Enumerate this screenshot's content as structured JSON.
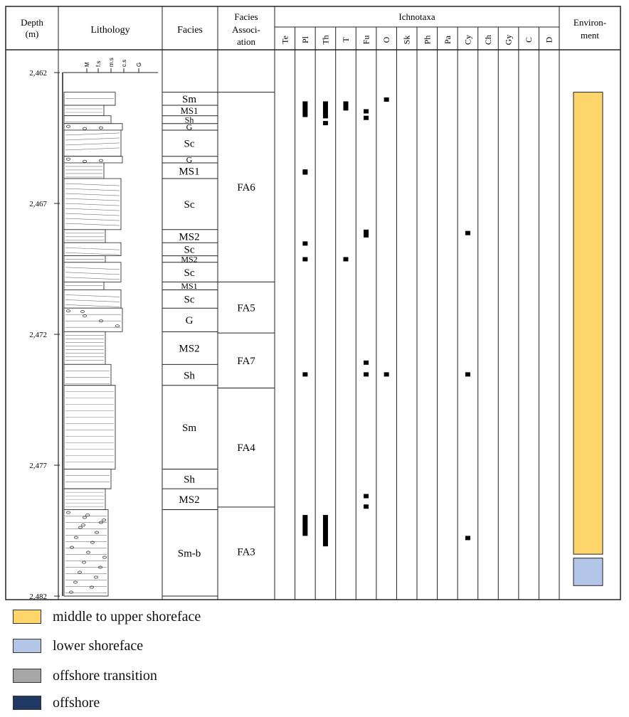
{
  "header": {
    "depth": [
      "Depth",
      "(m)"
    ],
    "lithology": "Lithology",
    "facies": "Facies",
    "association": [
      "Facies",
      "Associ-",
      "ation"
    ],
    "ichnotaxa": "Ichnotaxa",
    "environment": [
      "Environ-",
      "ment"
    ]
  },
  "grain_scale": [
    "M",
    "f.s",
    "m.s",
    "c.s",
    "G"
  ],
  "depth_scale": {
    "top": 2462,
    "bottom": 2482,
    "ticks": [
      "2,462",
      "2,467",
      "2,472",
      "2,477",
      "2,482"
    ]
  },
  "ichnotaxa": [
    "Te",
    "Pl",
    "Th",
    "T",
    "Fu",
    "O",
    "Sk",
    "Ph",
    "Pa",
    "Cy",
    "Ch",
    "Gy",
    "C",
    "D"
  ],
  "facies": [
    {
      "label": "Sm",
      "top": 2462.75,
      "bottom": 2463.25
    },
    {
      "label": "MS1",
      "top": 2463.25,
      "bottom": 2463.65
    },
    {
      "label": "Sh",
      "top": 2463.65,
      "bottom": 2463.95
    },
    {
      "label": "G",
      "top": 2463.95,
      "bottom": 2464.2
    },
    {
      "label": "Sc",
      "top": 2464.2,
      "bottom": 2465.2
    },
    {
      "label": "G",
      "top": 2465.2,
      "bottom": 2465.45
    },
    {
      "label": "MS1",
      "top": 2465.45,
      "bottom": 2466.05
    },
    {
      "label": "Sc",
      "top": 2466.05,
      "bottom": 2468.0
    },
    {
      "label": "MS2",
      "top": 2468.0,
      "bottom": 2468.5
    },
    {
      "label": "Sc",
      "top": 2468.5,
      "bottom": 2469.0
    },
    {
      "label": "MS2",
      "top": 2469.0,
      "bottom": 2469.25
    },
    {
      "label": "Sc",
      "top": 2469.25,
      "bottom": 2470.0
    },
    {
      "label": "MS1",
      "top": 2470.0,
      "bottom": 2470.3
    },
    {
      "label": "Sc",
      "top": 2470.3,
      "bottom": 2471.0
    },
    {
      "label": "G",
      "top": 2471.0,
      "bottom": 2471.9
    },
    {
      "label": "MS2",
      "top": 2471.9,
      "bottom": 2473.15
    },
    {
      "label": "Sh",
      "top": 2473.15,
      "bottom": 2473.95
    },
    {
      "label": "Sm",
      "top": 2473.95,
      "bottom": 2477.15
    },
    {
      "label": "Sh",
      "top": 2477.15,
      "bottom": 2477.9
    },
    {
      "label": "MS2",
      "top": 2477.9,
      "bottom": 2478.7
    },
    {
      "label": "Sm-b",
      "top": 2478.7,
      "bottom": 2482.0
    }
  ],
  "associations": [
    {
      "label": "FA6",
      "top": 2462.75,
      "bottom": 2470.0
    },
    {
      "label": "FA5",
      "top": 2470.0,
      "bottom": 2471.95
    },
    {
      "label": "FA7",
      "top": 2471.95,
      "bottom": 2474.05
    },
    {
      "label": "FA4",
      "top": 2474.05,
      "bottom": 2478.6
    },
    {
      "label": "FA3",
      "top": 2478.6,
      "bottom": 2482.0
    }
  ],
  "occurrences": [
    {
      "taxon": "O",
      "top": 2462.95,
      "bottom": 2463.1
    },
    {
      "taxon": "Pl",
      "top": 2463.1,
      "bottom": 2463.7
    },
    {
      "taxon": "Th",
      "top": 2463.1,
      "bottom": 2463.75
    },
    {
      "taxon": "Th",
      "top": 2463.85,
      "bottom": 2464.0
    },
    {
      "taxon": "T",
      "top": 2463.1,
      "bottom": 2463.45
    },
    {
      "taxon": "Fu",
      "top": 2463.4,
      "bottom": 2463.55
    },
    {
      "taxon": "Fu",
      "top": 2463.65,
      "bottom": 2463.8
    },
    {
      "taxon": "Pl",
      "top": 2465.7,
      "bottom": 2465.9
    },
    {
      "taxon": "Fu",
      "top": 2468.0,
      "bottom": 2468.3
    },
    {
      "taxon": "Cy",
      "top": 2468.05,
      "bottom": 2468.2
    },
    {
      "taxon": "Pl",
      "top": 2468.45,
      "bottom": 2468.6
    },
    {
      "taxon": "Pl",
      "top": 2469.05,
      "bottom": 2469.2
    },
    {
      "taxon": "T",
      "top": 2469.05,
      "bottom": 2469.2
    },
    {
      "taxon": "Fu",
      "top": 2473.0,
      "bottom": 2473.15
    },
    {
      "taxon": "Fu",
      "top": 2473.45,
      "bottom": 2473.6
    },
    {
      "taxon": "Pl",
      "top": 2473.45,
      "bottom": 2473.6
    },
    {
      "taxon": "O",
      "top": 2473.45,
      "bottom": 2473.6
    },
    {
      "taxon": "Cy",
      "top": 2473.45,
      "bottom": 2473.6
    },
    {
      "taxon": "Fu",
      "top": 2478.1,
      "bottom": 2478.25
    },
    {
      "taxon": "Fu",
      "top": 2478.5,
      "bottom": 2478.65
    },
    {
      "taxon": "Pl",
      "top": 2478.9,
      "bottom": 2479.7
    },
    {
      "taxon": "Th",
      "top": 2478.9,
      "bottom": 2480.1
    },
    {
      "taxon": "Cy",
      "top": 2479.7,
      "bottom": 2479.85
    }
  ],
  "environments": [
    {
      "key": "middle-upper-shoreface",
      "top": 2462.75,
      "bottom": 2480.4
    },
    {
      "key": "lower-shoreface",
      "top": 2480.55,
      "bottom": 2481.6
    }
  ],
  "legend": [
    {
      "key": "middle-upper-shoreface",
      "label": "middle to upper shoreface",
      "color": "#FDD56B"
    },
    {
      "key": "lower-shoreface",
      "label": "lower shoreface",
      "color": "#B4C6E7"
    },
    {
      "key": "offshore-transition",
      "label": "offshore transition",
      "color": "#A6A6A6"
    },
    {
      "key": "offshore",
      "label": "offshore",
      "color": "#1F3864"
    }
  ]
}
